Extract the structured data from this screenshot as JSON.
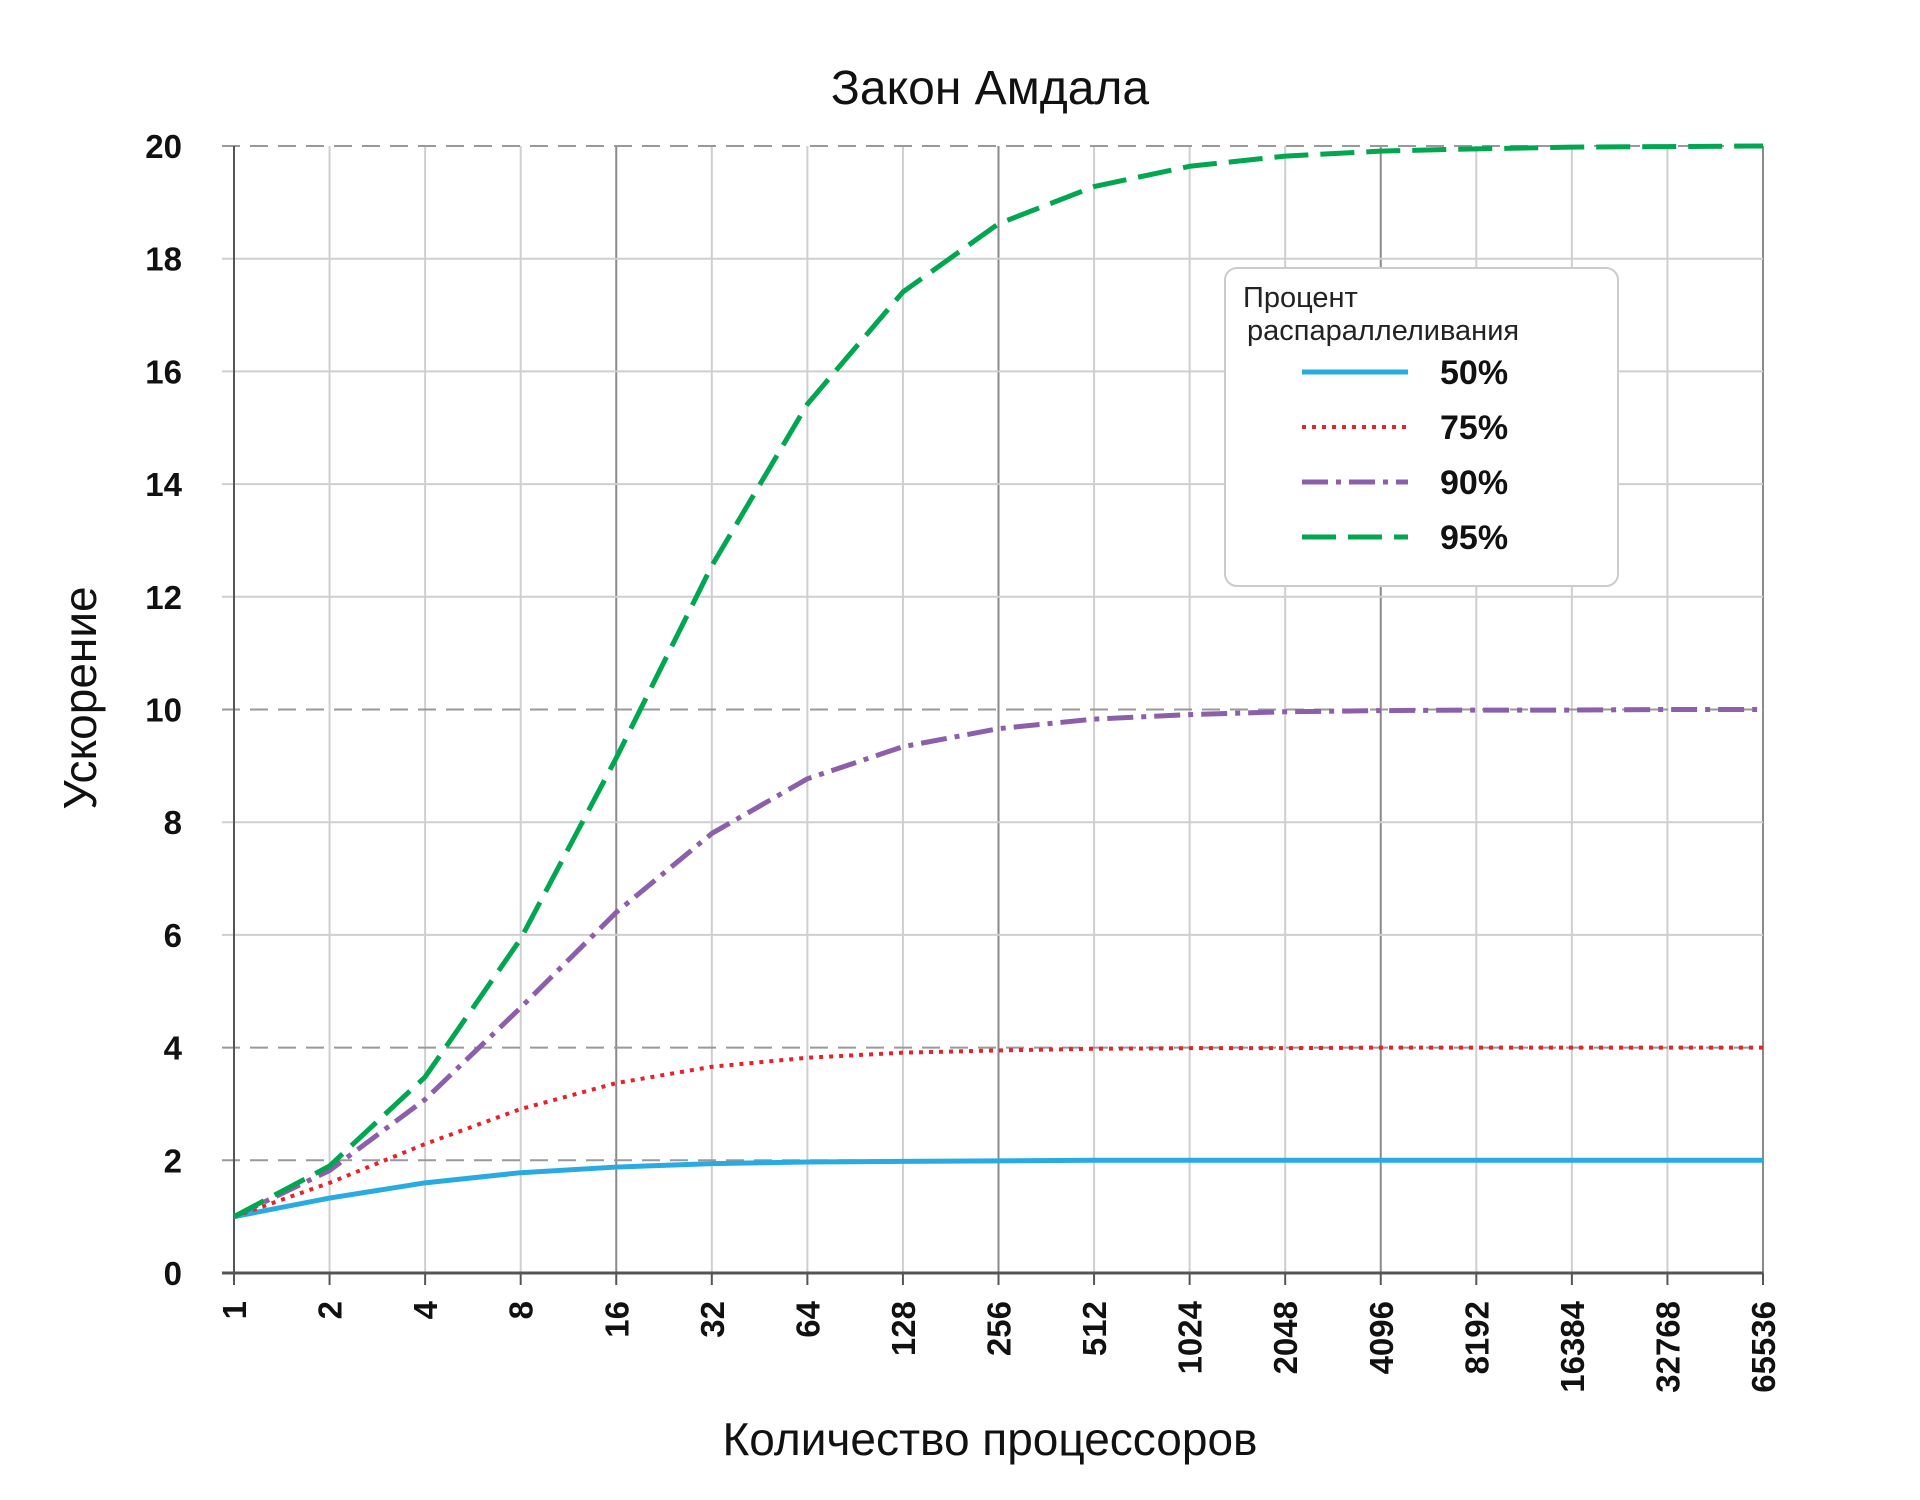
{
  "chart_data": {
    "type": "line",
    "title": "Закон Амдала",
    "xlabel": "Количество процессоров",
    "ylabel": "Ускорение",
    "x_scale": "log2",
    "x": [
      1,
      2,
      4,
      8,
      16,
      32,
      64,
      128,
      256,
      512,
      1024,
      2048,
      4096,
      8192,
      16384,
      32768,
      65536
    ],
    "x_tick_labels": [
      "1",
      "2",
      "4",
      "8",
      "16",
      "32",
      "64",
      "128",
      "256",
      "512",
      "1024",
      "2048",
      "4096",
      "8192",
      "16384",
      "32768",
      "65536"
    ],
    "y_ticks": [
      "0",
      "2",
      "4",
      "6",
      "8",
      "10",
      "12",
      "14",
      "16",
      "18",
      "20"
    ],
    "ylim": [
      0,
      20
    ],
    "grid": true,
    "dashed_gridlines_y": [
      2,
      4,
      10,
      20
    ],
    "legend": {
      "title_line1": "Процент",
      "title_line2": "распараллеливания",
      "position": "upper-right"
    },
    "series": [
      {
        "name": "50%",
        "color": "#29abe2",
        "style": "solid",
        "values": [
          1.0,
          1.33,
          1.6,
          1.78,
          1.88,
          1.94,
          1.97,
          1.98,
          1.99,
          2.0,
          2.0,
          2.0,
          2.0,
          2.0,
          2.0,
          2.0,
          2.0
        ]
      },
      {
        "name": "75%",
        "color": "#e8212b",
        "style": "dotted",
        "values": [
          1.0,
          1.6,
          2.29,
          2.91,
          3.37,
          3.66,
          3.82,
          3.91,
          3.95,
          3.98,
          3.99,
          3.99,
          4.0,
          4.0,
          4.0,
          4.0,
          4.0
        ]
      },
      {
        "name": "90%",
        "color": "#8c5fab",
        "style": "dashdot",
        "values": [
          1.0,
          1.82,
          3.08,
          4.71,
          6.4,
          7.8,
          8.77,
          9.34,
          9.66,
          9.83,
          9.91,
          9.96,
          9.98,
          9.99,
          9.99,
          10.0,
          10.0
        ]
      },
      {
        "name": "95%",
        "color": "#00a650",
        "style": "dashed",
        "values": [
          1.0,
          1.9,
          3.48,
          5.93,
          9.14,
          12.55,
          15.42,
          17.41,
          18.62,
          19.28,
          19.64,
          19.82,
          19.91,
          19.95,
          19.98,
          19.99,
          20.0
        ]
      }
    ]
  }
}
